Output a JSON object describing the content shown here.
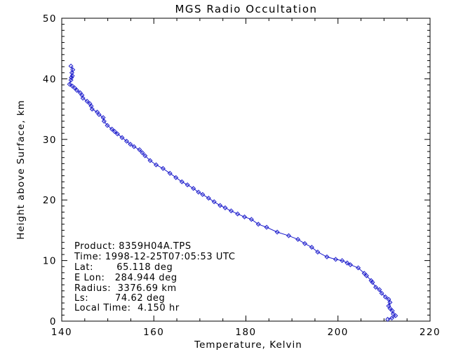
{
  "chart_data": {
    "type": "line",
    "title": "MGS Radio Occultation",
    "xlabel": "Temperature, Kelvin",
    "ylabel": "Height above Surface, km",
    "xlim": [
      140,
      220
    ],
    "ylim": [
      0,
      50
    ],
    "x_major_ticks": [
      140,
      160,
      180,
      200,
      220
    ],
    "x_minor_step": 5,
    "y_major_ticks": [
      0,
      10,
      20,
      30,
      40,
      50
    ],
    "y_minor_step": 1,
    "grid": false,
    "legend": "none",
    "series": [
      {
        "name": "temperature-profile",
        "color": "#1c1ccc",
        "marker": "diamond",
        "x_is": "temperature_K",
        "y_is": "height_km",
        "points": [
          [
            142.0,
            42.1
          ],
          [
            142.4,
            41.5
          ],
          [
            142.2,
            41.0
          ],
          [
            142.3,
            40.5
          ],
          [
            142.1,
            40.2
          ],
          [
            142.0,
            39.8
          ],
          [
            141.7,
            39.1
          ],
          [
            142.3,
            38.8
          ],
          [
            142.8,
            38.5
          ],
          [
            143.3,
            38.1
          ],
          [
            144.0,
            37.7
          ],
          [
            144.4,
            37.3
          ],
          [
            144.6,
            36.8
          ],
          [
            145.5,
            36.3
          ],
          [
            146.1,
            35.9
          ],
          [
            146.4,
            35.5
          ],
          [
            146.6,
            35.0
          ],
          [
            147.7,
            34.5
          ],
          [
            148.1,
            34.1
          ],
          [
            149.0,
            33.6
          ],
          [
            149.2,
            33.0
          ],
          [
            149.9,
            32.3
          ],
          [
            150.9,
            31.7
          ],
          [
            151.5,
            31.3
          ],
          [
            152.1,
            30.9
          ],
          [
            153.1,
            30.3
          ],
          [
            154.1,
            29.7
          ],
          [
            154.9,
            29.2
          ],
          [
            155.7,
            28.8
          ],
          [
            156.9,
            28.3
          ],
          [
            157.5,
            27.8
          ],
          [
            158.1,
            27.3
          ],
          [
            159.2,
            26.5
          ],
          [
            160.5,
            25.8
          ],
          [
            162.0,
            25.2
          ],
          [
            163.5,
            24.4
          ],
          [
            164.8,
            23.7
          ],
          [
            166.1,
            23.0
          ],
          [
            167.3,
            22.5
          ],
          [
            168.6,
            21.9
          ],
          [
            169.7,
            21.3
          ],
          [
            170.6,
            20.9
          ],
          [
            171.9,
            20.3
          ],
          [
            173.1,
            19.7
          ],
          [
            174.4,
            19.1
          ],
          [
            175.5,
            18.7
          ],
          [
            176.8,
            18.2
          ],
          [
            178.2,
            17.7
          ],
          [
            179.7,
            17.2
          ],
          [
            181.2,
            16.8
          ],
          [
            182.7,
            16.0
          ],
          [
            184.5,
            15.5
          ],
          [
            186.8,
            14.7
          ],
          [
            189.3,
            14.1
          ],
          [
            191.3,
            13.5
          ],
          [
            192.8,
            12.8
          ],
          [
            194.3,
            12.2
          ],
          [
            195.6,
            11.4
          ],
          [
            197.6,
            10.6
          ],
          [
            199.5,
            10.2
          ],
          [
            200.9,
            10.0
          ],
          [
            202.0,
            9.6
          ],
          [
            202.7,
            9.3
          ],
          [
            204.4,
            8.8
          ],
          [
            205.7,
            7.9
          ],
          [
            206.2,
            7.5
          ],
          [
            207.2,
            6.7
          ],
          [
            207.5,
            6.4
          ],
          [
            208.2,
            5.6
          ],
          [
            209.0,
            5.2
          ],
          [
            209.5,
            4.6
          ],
          [
            210.3,
            4.0
          ],
          [
            211.0,
            3.6
          ],
          [
            211.3,
            3.1
          ],
          [
            211.0,
            2.5
          ],
          [
            211.3,
            2.1
          ],
          [
            211.8,
            1.7
          ],
          [
            212.0,
            1.2
          ],
          [
            212.5,
            0.9
          ],
          [
            211.7,
            0.5
          ],
          [
            210.8,
            0.3
          ]
        ]
      }
    ]
  },
  "annotation": {
    "lines": [
      "Product: 8359H04A.TPS",
      "Time: 1998-12-25T07:05:53 UTC",
      "Lat:       65.118 deg",
      "E Lon:   284.944 deg",
      "Radius:  3376.69 km",
      "Ls:        74.62 deg",
      "Local Time:  4.150 hr"
    ]
  },
  "colors": {
    "axis": "#000000",
    "curve": "#1c1ccc",
    "background": "#ffffff"
  }
}
